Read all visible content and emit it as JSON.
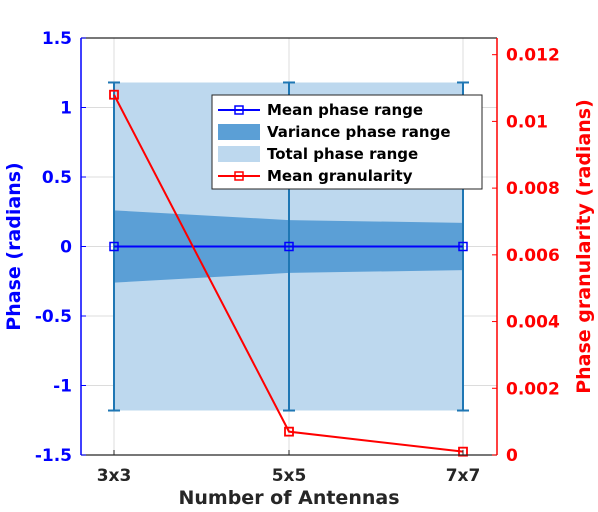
{
  "chart_data": {
    "type": "line",
    "categories": [
      "3x3",
      "5x5",
      "7x7"
    ],
    "xlabel": "Number of Antennas",
    "ylabel_left": "Phase (radians)",
    "ylabel_right": "Phase granularity (radians)",
    "ylim_left": [
      -1.5,
      1.5
    ],
    "ylim_right": [
      0,
      0.0125
    ],
    "yticks_left": [
      "1.5",
      "1",
      "0.5",
      "0",
      "-0.5",
      "-1",
      "-1.5"
    ],
    "yticks_left_values": [
      1.5,
      1,
      0.5,
      0,
      -0.5,
      -1,
      -1.5
    ],
    "yticks_right": [
      "0.012",
      "0.01",
      "0.008",
      "0.006",
      "0.004",
      "0.002",
      "0"
    ],
    "yticks_right_values": [
      0.012,
      0.01,
      0.008,
      0.006,
      0.004,
      0.002,
      0
    ],
    "grid": true,
    "legend_position": "top-right",
    "series": [
      {
        "name": "Mean phase range",
        "axis": "left",
        "kind": "line-errorbar",
        "values": [
          0,
          0,
          0
        ],
        "err_low": [
          -1.18,
          -1.18,
          -1.18
        ],
        "err_high": [
          1.18,
          1.18,
          1.18
        ],
        "color": "#0000ff",
        "errcolor": "#1f77b4"
      },
      {
        "name": "Variance phase range",
        "axis": "left",
        "kind": "band",
        "low": [
          -0.26,
          -0.19,
          -0.17
        ],
        "high": [
          0.26,
          0.19,
          0.17
        ],
        "color": "#5b9fd6"
      },
      {
        "name": "Total phase range",
        "axis": "left",
        "kind": "band",
        "low": [
          -1.18,
          -1.18,
          -1.18
        ],
        "high": [
          1.18,
          1.18,
          1.18
        ],
        "color": "#bdd8ee"
      },
      {
        "name": "Mean granularity",
        "axis": "right",
        "kind": "line-marker",
        "values": [
          0.0108,
          0.0007,
          0.0001
        ],
        "color": "#ff0000"
      }
    ]
  },
  "colors": {
    "left_axis": "#0000ff",
    "right_axis": "#ff0000",
    "grid": "#dcdcdc",
    "frame": "#262626"
  }
}
